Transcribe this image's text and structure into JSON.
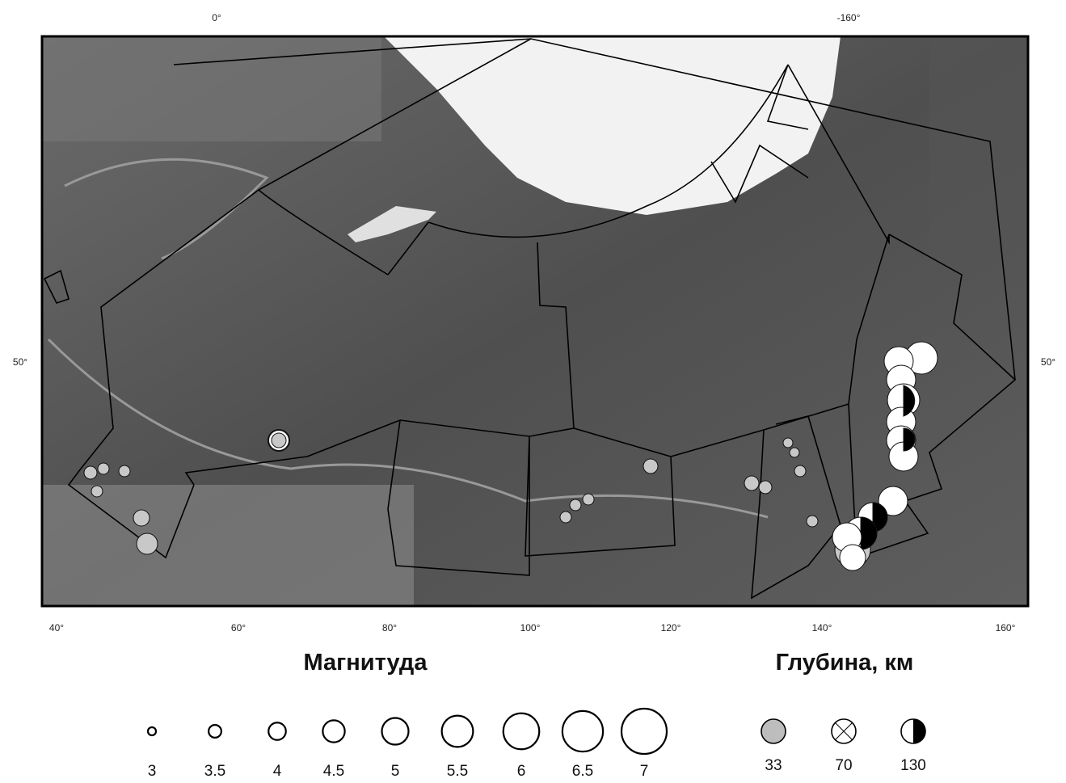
{
  "map": {
    "top_labels": [
      "0°",
      "-160°"
    ],
    "side_labels": [
      "50°",
      "50°"
    ],
    "bottom_labels": [
      "40°",
      "60°",
      "80°",
      "100°",
      "120°",
      "140°",
      "160°"
    ]
  },
  "legend": {
    "magnitude": {
      "title": "Магнитуда",
      "values": [
        3,
        3.5,
        4,
        4.5,
        5,
        5.5,
        6,
        6.5,
        7
      ]
    },
    "depth": {
      "title": "Глубина, км",
      "values": [
        33,
        70,
        130
      ]
    }
  }
}
